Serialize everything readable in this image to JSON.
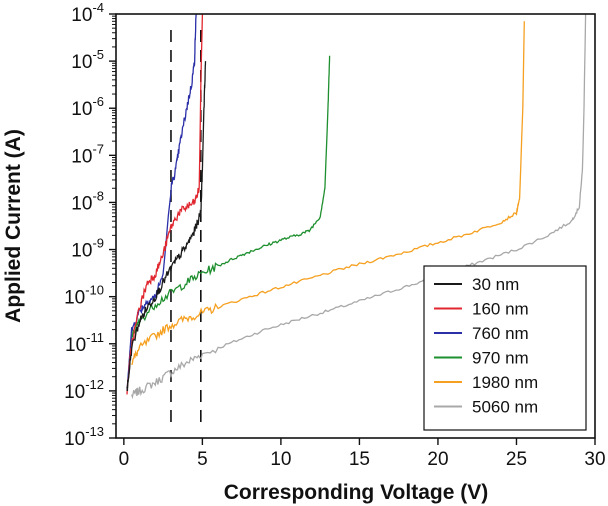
{
  "chart_data": {
    "type": "line",
    "title": "",
    "xlabel": "Corresponding Voltage (V)",
    "ylabel": "Applied Current (A)",
    "xlim": [
      -0.5,
      30
    ],
    "x_ticks": [
      0,
      5,
      10,
      15,
      20,
      25,
      30
    ],
    "y_scale": "log",
    "y_decades": [
      -13,
      -12,
      -11,
      -10,
      -9,
      -8,
      -7,
      -6,
      -5,
      -4
    ],
    "grid": false,
    "legend_position": "bottom-right",
    "reference_lines": [
      {
        "x": 3.0,
        "style": "dashed",
        "color": "#111111"
      },
      {
        "x": 4.9,
        "style": "dashed",
        "color": "#111111"
      }
    ],
    "series": [
      {
        "name": "30 nm",
        "color": "#1a1a1a",
        "points": [
          [
            0.2,
            1e-12
          ],
          [
            0.5,
            8e-12
          ],
          [
            1.0,
            3e-11
          ],
          [
            1.5,
            6e-11
          ],
          [
            2.0,
            1e-10
          ],
          [
            2.5,
            2e-10
          ],
          [
            3.0,
            4e-10
          ],
          [
            3.5,
            7e-10
          ],
          [
            4.0,
            1.2e-09
          ],
          [
            4.5,
            2.5e-09
          ],
          [
            4.9,
            6e-09
          ],
          [
            5.0,
            5e-08
          ],
          [
            5.1,
            1e-06
          ],
          [
            5.2,
            1e-05
          ]
        ]
      },
      {
        "name": "160 nm",
        "color": "#e0262e",
        "points": [
          [
            0.2,
            1e-12
          ],
          [
            0.5,
            1e-11
          ],
          [
            1.0,
            6e-11
          ],
          [
            1.5,
            2e-10
          ],
          [
            2.0,
            3e-10
          ],
          [
            2.5,
            8e-10
          ],
          [
            3.0,
            3e-09
          ],
          [
            3.5,
            6e-09
          ],
          [
            4.0,
            8e-09
          ],
          [
            4.5,
            1e-08
          ],
          [
            4.8,
            2e-08
          ],
          [
            4.9,
            3e-06
          ],
          [
            5.0,
            0.0001
          ]
        ]
      },
      {
        "name": "760 nm",
        "color": "#2b2fa8",
        "points": [
          [
            0.2,
            1e-12
          ],
          [
            0.5,
            2e-11
          ],
          [
            1.0,
            5e-11
          ],
          [
            1.5,
            8e-11
          ],
          [
            2.0,
            1e-10
          ],
          [
            2.5,
            3e-10
          ],
          [
            3.0,
            2e-08
          ],
          [
            3.3,
            5e-08
          ],
          [
            3.6,
            2e-07
          ],
          [
            4.0,
            1e-06
          ],
          [
            4.3,
            3e-06
          ],
          [
            4.5,
            1e-05
          ],
          [
            4.6,
            0.0001
          ]
        ]
      },
      {
        "name": "970 nm",
        "color": "#1e8f2e",
        "points": [
          [
            0.2,
            1e-12
          ],
          [
            0.5,
            1.5e-11
          ],
          [
            1.0,
            3e-11
          ],
          [
            2.0,
            7e-11
          ],
          [
            3.0,
            1.2e-10
          ],
          [
            4.0,
            2e-10
          ],
          [
            5.0,
            3.2e-10
          ],
          [
            6.0,
            4.5e-10
          ],
          [
            7.0,
            6.5e-10
          ],
          [
            8.0,
            9e-10
          ],
          [
            9.0,
            1.2e-09
          ],
          [
            10.0,
            1.6e-09
          ],
          [
            11.0,
            2e-09
          ],
          [
            11.8,
            2.5e-09
          ],
          [
            12.5,
            5e-09
          ],
          [
            12.8,
            2e-08
          ],
          [
            13.0,
            1e-06
          ],
          [
            13.1,
            1.3e-05
          ]
        ]
      },
      {
        "name": "1980 nm",
        "color": "#f5a020",
        "points": [
          [
            0.5,
            4e-12
          ],
          [
            1.0,
            8e-12
          ],
          [
            2.0,
            1.5e-11
          ],
          [
            3.0,
            2.5e-11
          ],
          [
            4.0,
            3.5e-11
          ],
          [
            5.0,
            4.5e-11
          ],
          [
            6.0,
            6e-11
          ],
          [
            8.0,
            1e-10
          ],
          [
            10.0,
            1.6e-10
          ],
          [
            12.0,
            2.5e-10
          ],
          [
            14.0,
            4e-10
          ],
          [
            16.0,
            6e-10
          ],
          [
            18.0,
            9e-10
          ],
          [
            20.0,
            1.4e-09
          ],
          [
            22.0,
            2.2e-09
          ],
          [
            24.0,
            3.8e-09
          ],
          [
            25.0,
            6e-09
          ],
          [
            25.2,
            1.2e-08
          ],
          [
            25.4,
            1e-06
          ],
          [
            25.5,
            7e-05
          ]
        ]
      },
      {
        "name": "5060 nm",
        "color": "#a8a8a8",
        "points": [
          [
            0.5,
            8e-13
          ],
          [
            1.0,
            1e-12
          ],
          [
            2.0,
            1.5e-12
          ],
          [
            3.0,
            2.5e-12
          ],
          [
            4.0,
            4e-12
          ],
          [
            5.0,
            6e-12
          ],
          [
            7.0,
            1.1e-11
          ],
          [
            9.0,
            2e-11
          ],
          [
            11.0,
            3.2e-11
          ],
          [
            13.0,
            5e-11
          ],
          [
            15.0,
            8e-11
          ],
          [
            17.0,
            1.3e-10
          ],
          [
            19.0,
            2.1e-10
          ],
          [
            21.0,
            3.5e-10
          ],
          [
            23.0,
            6e-10
          ],
          [
            25.0,
            1e-09
          ],
          [
            27.0,
            2e-09
          ],
          [
            28.5,
            4e-09
          ],
          [
            29.0,
            8e-09
          ],
          [
            29.2,
            5e-08
          ],
          [
            29.3,
            1e-06
          ],
          [
            29.4,
            0.0001
          ]
        ]
      }
    ]
  }
}
